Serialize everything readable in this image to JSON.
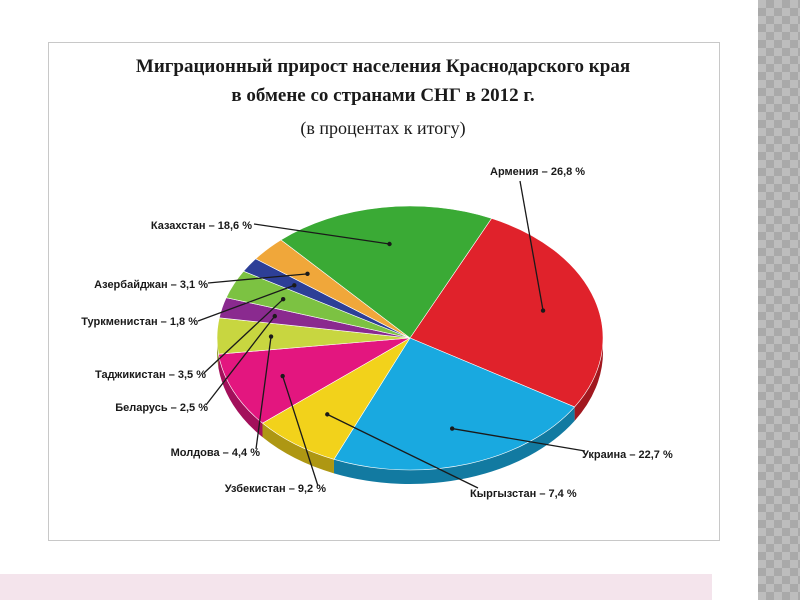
{
  "chart_data": {
    "type": "pie",
    "title_lines": [
      "Миграционный прирост населения Краснодарского края",
      "в обмене со странами СНГ в 2012 г."
    ],
    "subtitle": "(в процентах к итогу)",
    "slices": [
      {
        "name": "Армения",
        "value": 26.8,
        "label": "Армения – 26,8 %",
        "color": "#e0222b"
      },
      {
        "name": "Украина",
        "value": 22.7,
        "label": "Украина – 22,7 %",
        "color": "#19a9e0"
      },
      {
        "name": "Кыргызстан",
        "value": 7.4,
        "label": "Кыргызстан – 7,4 %",
        "color": "#f2d21b"
      },
      {
        "name": "Узбекистан",
        "value": 9.2,
        "label": "Узбекистан – 9,2 %",
        "color": "#e3167f"
      },
      {
        "name": "Молдова",
        "value": 4.4,
        "label": "Молдова – 4,4 %",
        "color": "#c8d640"
      },
      {
        "name": "Беларусь",
        "value": 2.5,
        "label": "Беларусь – 2,5 %",
        "color": "#8a2a8f"
      },
      {
        "name": "Таджикистан",
        "value": 3.5,
        "label": "Таджикистан – 3,5 %",
        "color": "#7cc242"
      },
      {
        "name": "Туркменистан",
        "value": 1.8,
        "label": "Туркменистан – 1,8 %",
        "color": "#2d3f97"
      },
      {
        "name": "Азербайджан",
        "value": 3.1,
        "label": "Азербайджан – 3,1 %",
        "color": "#f0a73a"
      },
      {
        "name": "Казахстан",
        "value": 18.6,
        "label": "Казахстан – 18,6 %",
        "color": "#3aaa35"
      }
    ]
  }
}
